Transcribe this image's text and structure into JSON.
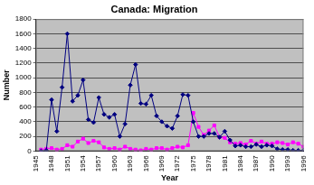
{
  "chart_data": {
    "type": "line",
    "title": "Canada: Migration",
    "x_label": "Year",
    "y_label": "Number",
    "x": [
      1946,
      1947,
      1948,
      1949,
      1950,
      1951,
      1952,
      1953,
      1954,
      1955,
      1956,
      1957,
      1958,
      1959,
      1960,
      1961,
      1962,
      1963,
      1964,
      1965,
      1966,
      1967,
      1968,
      1969,
      1970,
      1971,
      1972,
      1973,
      1974,
      1975,
      1976,
      1977,
      1978,
      1979,
      1980,
      1981,
      1982,
      1983,
      1984,
      1985,
      1986,
      1987,
      1988,
      1989,
      1990,
      1991,
      1992,
      1993,
      1994,
      1995,
      1996
    ],
    "series": [
      {
        "color": "#000080",
        "marker": "diamond",
        "line_style": "solid",
        "values": [
          0,
          10,
          700,
          270,
          870,
          1600,
          680,
          760,
          970,
          430,
          390,
          730,
          500,
          460,
          500,
          200,
          370,
          900,
          1180,
          650,
          640,
          760,
          480,
          400,
          340,
          310,
          480,
          770,
          760,
          400,
          200,
          200,
          240,
          240,
          190,
          270,
          150,
          70,
          80,
          60,
          60,
          90,
          60,
          80,
          70,
          30,
          20,
          20,
          10,
          10,
          10
        ]
      },
      {
        "color": "#ff00ff",
        "marker": "square",
        "line_style": "solid",
        "values": [
          20,
          30,
          40,
          20,
          30,
          80,
          60,
          130,
          170,
          110,
          140,
          120,
          50,
          30,
          40,
          20,
          60,
          30,
          20,
          10,
          30,
          20,
          40,
          40,
          20,
          40,
          60,
          50,
          80,
          520,
          330,
          220,
          280,
          350,
          190,
          180,
          120,
          100,
          110,
          90,
          140,
          100,
          130,
          100,
          100,
          120,
          110,
          90,
          120,
          100,
          60
        ]
      }
    ],
    "xlim": [
      1945,
      1996
    ],
    "xticks": [
      1945,
      1948,
      1951,
      1954,
      1957,
      1960,
      1963,
      1966,
      1969,
      1972,
      1975,
      1978,
      1981,
      1984,
      1987,
      1990,
      1993,
      1996
    ],
    "ylim": [
      0,
      1800
    ],
    "yticks": [
      0,
      200,
      400,
      600,
      800,
      1000,
      1200,
      1400,
      1600,
      1800
    ],
    "grid": true
  }
}
